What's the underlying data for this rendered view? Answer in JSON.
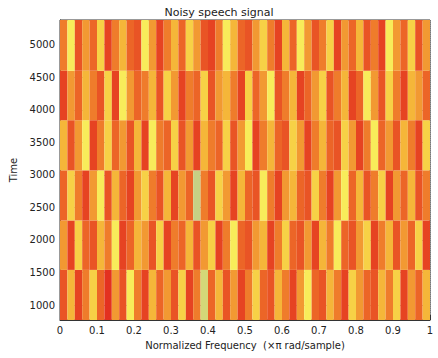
{
  "chart_data": {
    "type": "heatmap",
    "title": "Noisy speech signal",
    "x_label": "Normalized Frequency  (×π rad/sample)",
    "y_label": "Time",
    "xlim": [
      0,
      1
    ],
    "xticks": [
      0,
      0.1,
      0.2,
      0.3,
      0.4,
      0.5,
      0.6,
      0.7,
      0.8,
      0.9,
      1
    ],
    "ylim": [
      770,
      5380
    ],
    "yticks": [
      1000,
      1500,
      2000,
      2500,
      3000,
      3500,
      4000,
      4500,
      5000
    ],
    "grid": true,
    "x_bins": [
      0,
      0.02,
      0.04,
      0.06,
      0.08,
      0.1,
      0.12,
      0.14,
      0.16,
      0.18,
      0.2,
      0.22,
      0.24,
      0.26,
      0.28,
      0.3,
      0.32,
      0.34,
      0.36,
      0.38,
      0.4,
      0.42,
      0.44,
      0.46,
      0.48,
      0.5,
      0.52,
      0.54,
      0.56,
      0.58,
      0.6,
      0.62,
      0.64,
      0.66,
      0.68,
      0.7,
      0.72,
      0.74,
      0.76,
      0.78,
      0.8,
      0.82,
      0.84,
      0.86,
      0.88,
      0.9,
      0.92,
      0.94,
      0.96,
      0.98,
      1
    ],
    "y_bins": [
      770,
      1540,
      2300,
      3070,
      3840,
      4600,
      5380
    ],
    "clim": [
      0,
      1
    ],
    "cells": [
      [
        0.3,
        0.7,
        0.2,
        0.5,
        0.8,
        0.4,
        0.1,
        0.6,
        0.3,
        0.9,
        0.5,
        0.2,
        0.7,
        0.4,
        0.6,
        0.3,
        0.8,
        0.2,
        0.5,
        0.95,
        0.4,
        0.7,
        0.3,
        0.6,
        0.2,
        0.5,
        0.8,
        0.4,
        0.3,
        0.7,
        0.5,
        0.2,
        0.6,
        0.9,
        0.4,
        0.3,
        0.7,
        0.5,
        0.2,
        0.8,
        0.6,
        0.4,
        0.3,
        0.7,
        0.5,
        0.8,
        0.2,
        0.6,
        0.4,
        0.7
      ],
      [
        0.6,
        0.2,
        0.8,
        0.4,
        0.3,
        0.7,
        0.5,
        0.9,
        0.2,
        0.4,
        0.7,
        0.6,
        0.3,
        0.8,
        0.2,
        0.5,
        0.4,
        0.7,
        0.3,
        0.6,
        0.8,
        0.2,
        0.5,
        0.9,
        0.4,
        0.3,
        0.6,
        0.7,
        0.2,
        0.5,
        0.8,
        0.4,
        0.3,
        0.6,
        0.2,
        0.7,
        0.5,
        0.9,
        0.4,
        0.3,
        0.6,
        0.8,
        0.2,
        0.5,
        0.7,
        0.3,
        0.6,
        0.4,
        0.8,
        0.2
      ],
      [
        0.4,
        0.8,
        0.5,
        0.2,
        0.6,
        0.9,
        0.3,
        0.7,
        0.4,
        0.2,
        0.6,
        0.8,
        0.5,
        0.3,
        0.7,
        0.2,
        0.6,
        0.4,
        0.97,
        0.5,
        0.3,
        0.8,
        0.6,
        0.2,
        0.7,
        0.4,
        0.3,
        0.9,
        0.5,
        0.2,
        0.6,
        0.7,
        0.4,
        0.3,
        0.8,
        0.5,
        0.2,
        0.6,
        0.9,
        0.4,
        0.7,
        0.3,
        0.5,
        0.8,
        0.2,
        0.6,
        0.4,
        0.7,
        0.3,
        0.5
      ],
      [
        0.7,
        0.3,
        0.6,
        0.9,
        0.2,
        0.5,
        0.8,
        0.4,
        0.6,
        0.3,
        0.7,
        0.2,
        0.9,
        0.5,
        0.4,
        0.8,
        0.3,
        0.6,
        0.2,
        0.7,
        0.5,
        0.4,
        0.8,
        0.3,
        0.6,
        0.9,
        0.2,
        0.5,
        0.7,
        0.4,
        0.3,
        0.8,
        0.6,
        0.2,
        0.5,
        0.7,
        0.4,
        0.3,
        0.8,
        0.6,
        0.2,
        0.5,
        0.9,
        0.4,
        0.6,
        0.3,
        0.7,
        0.5,
        0.2,
        0.8
      ],
      [
        0.2,
        0.6,
        0.4,
        0.7,
        0.5,
        0.3,
        0.8,
        0.2,
        0.9,
        0.6,
        0.4,
        0.5,
        0.7,
        0.3,
        0.8,
        0.6,
        0.2,
        0.5,
        0.4,
        0.8,
        0.3,
        0.6,
        0.7,
        0.5,
        0.2,
        0.8,
        0.4,
        0.6,
        0.9,
        0.3,
        0.5,
        0.7,
        0.2,
        0.4,
        0.6,
        0.8,
        0.3,
        0.5,
        0.7,
        0.2,
        0.4,
        0.9,
        0.6,
        0.3,
        0.8,
        0.5,
        0.2,
        0.7,
        0.6,
        0.4
      ],
      [
        0.5,
        0.9,
        0.3,
        0.6,
        0.4,
        0.8,
        0.2,
        0.5,
        0.7,
        0.4,
        0.3,
        0.9,
        0.6,
        0.2,
        0.5,
        0.7,
        0.4,
        0.8,
        0.6,
        0.3,
        0.2,
        0.5,
        0.9,
        0.7,
        0.4,
        0.3,
        0.6,
        0.8,
        0.5,
        0.2,
        0.7,
        0.4,
        0.9,
        0.6,
        0.3,
        0.5,
        0.8,
        0.2,
        0.6,
        0.4,
        0.7,
        0.3,
        0.5,
        0.2,
        0.9,
        0.6,
        0.4,
        0.8,
        0.3,
        0.6
      ]
    ]
  }
}
